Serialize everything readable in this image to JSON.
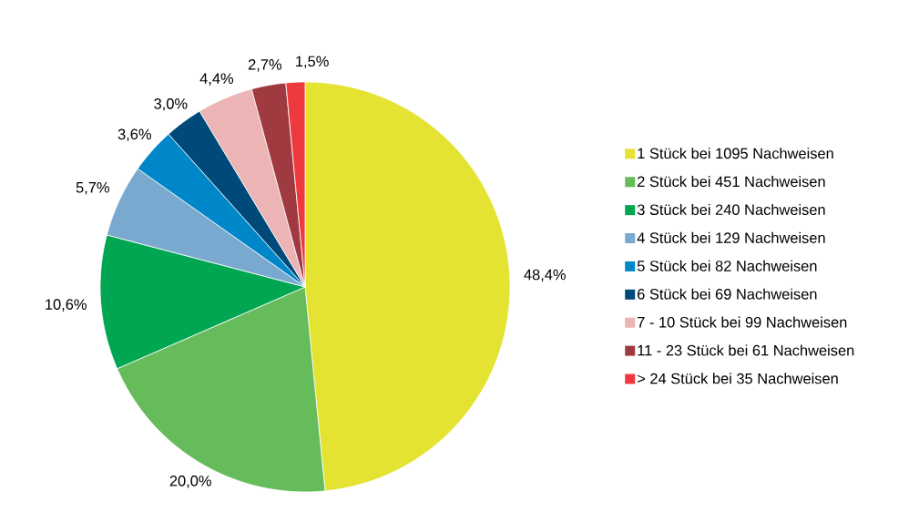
{
  "chart_data": {
    "type": "pie",
    "categories": [
      "1 Stück bei 1095 Nachweisen",
      "2 Stück bei 451 Nachweisen",
      "3 Stück bei 240 Nachweisen",
      "4 Stück bei 129 Nachweisen",
      "5 Stück bei 82 Nachweisen",
      "6 Stück bei 69 Nachweisen",
      "7 - 10 Stück bei 99 Nachweisen",
      "11 - 23 Stück bei 61 Nachweisen",
      "> 24 Stück bei 35 Nachweisen"
    ],
    "values": [
      48.4,
      20.0,
      10.6,
      5.7,
      3.6,
      3.0,
      4.4,
      2.7,
      1.5
    ],
    "value_labels": [
      "48,4%",
      "20,0%",
      "10,6%",
      "5,7%",
      "3,6%",
      "3,0%",
      "4,4%",
      "2,7%",
      "1,5%"
    ],
    "colors": [
      "#e4e332",
      "#66bb5a",
      "#00a651",
      "#7aa9cf",
      "#0087c9",
      "#004a7a",
      "#ecb4b4",
      "#9e3a40",
      "#ee3a3f"
    ],
    "legend": "right"
  }
}
